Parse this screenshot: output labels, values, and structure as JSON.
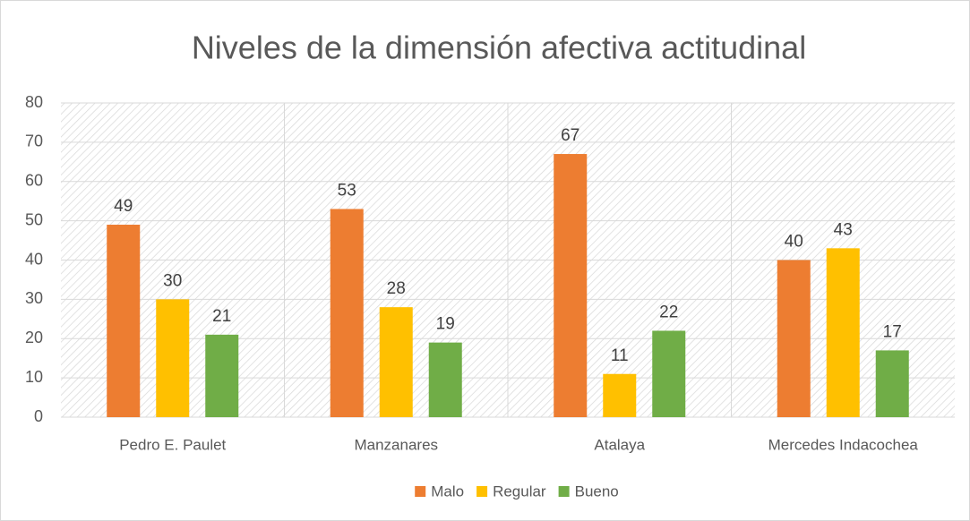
{
  "chart_data": {
    "type": "bar",
    "title": "Niveles de la dimensión afectiva actitudinal",
    "categories": [
      "Pedro E. Paulet",
      "Manzanares",
      "Atalaya",
      "Mercedes Indacochea"
    ],
    "series": [
      {
        "name": "Malo",
        "color": "#ed7d31",
        "values": [
          49,
          53,
          67,
          40
        ]
      },
      {
        "name": "Regular",
        "color": "#ffc000",
        "values": [
          30,
          28,
          11,
          43
        ]
      },
      {
        "name": "Bueno",
        "color": "#70ad47",
        "values": [
          21,
          19,
          22,
          17
        ]
      }
    ],
    "ylim": [
      0,
      80
    ],
    "yticks": [
      0,
      10,
      20,
      30,
      40,
      50,
      60,
      70,
      80
    ],
    "grid": true,
    "legend": "bottom"
  }
}
